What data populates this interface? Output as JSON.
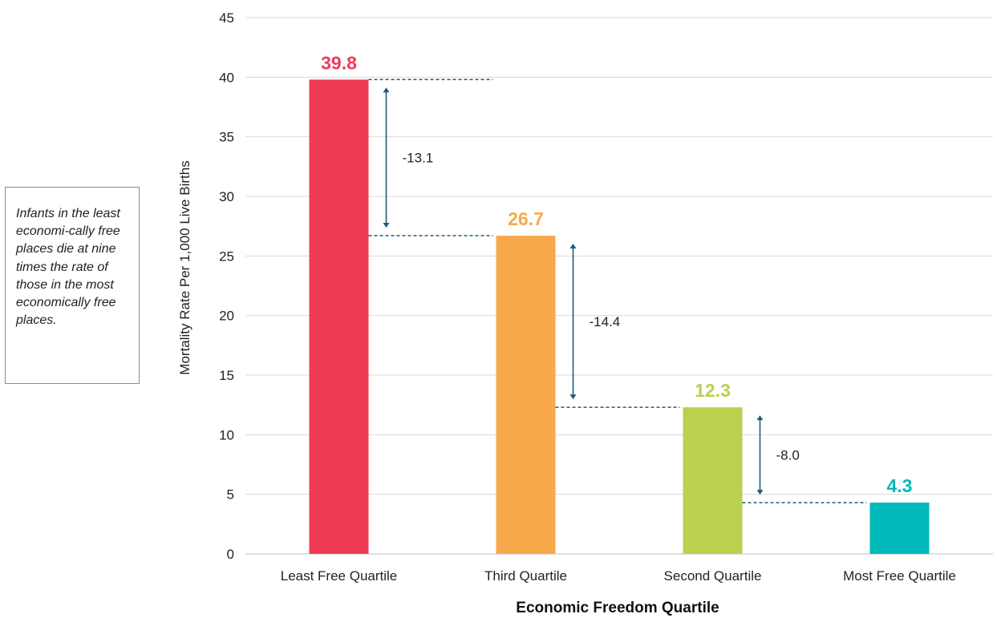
{
  "note": "Infants in the least economi-cally free places die at nine times the rate of those in the most economically free places.",
  "chart_data": {
    "type": "bar",
    "categories": [
      "Least Free Quartile",
      "Third Quartile",
      "Second Quartile",
      "Most Free Quartile"
    ],
    "values": [
      39.8,
      26.7,
      12.3,
      4.3
    ],
    "value_labels": [
      "39.8",
      "26.7",
      "12.3",
      "4.3"
    ],
    "colors": [
      "#ef3b56",
      "#f7a94b",
      "#bad04f",
      "#00b9b9"
    ],
    "xlabel": "Economic Freedom Quartile",
    "ylabel": "Mortality Rate Per 1,000 Live Births",
    "ylim": [
      0,
      45
    ],
    "yticks": [
      0,
      5,
      10,
      15,
      20,
      25,
      30,
      35,
      40,
      45
    ],
    "grid": true,
    "annotations": [
      {
        "from": 0,
        "to": 1,
        "label": "-13.1"
      },
      {
        "from": 1,
        "to": 2,
        "label": "-14.4"
      },
      {
        "from": 2,
        "to": 3,
        "label": "-8.0"
      }
    ],
    "annotation_color": "#1f5a7e",
    "grid_color": "#d9d9d9"
  }
}
